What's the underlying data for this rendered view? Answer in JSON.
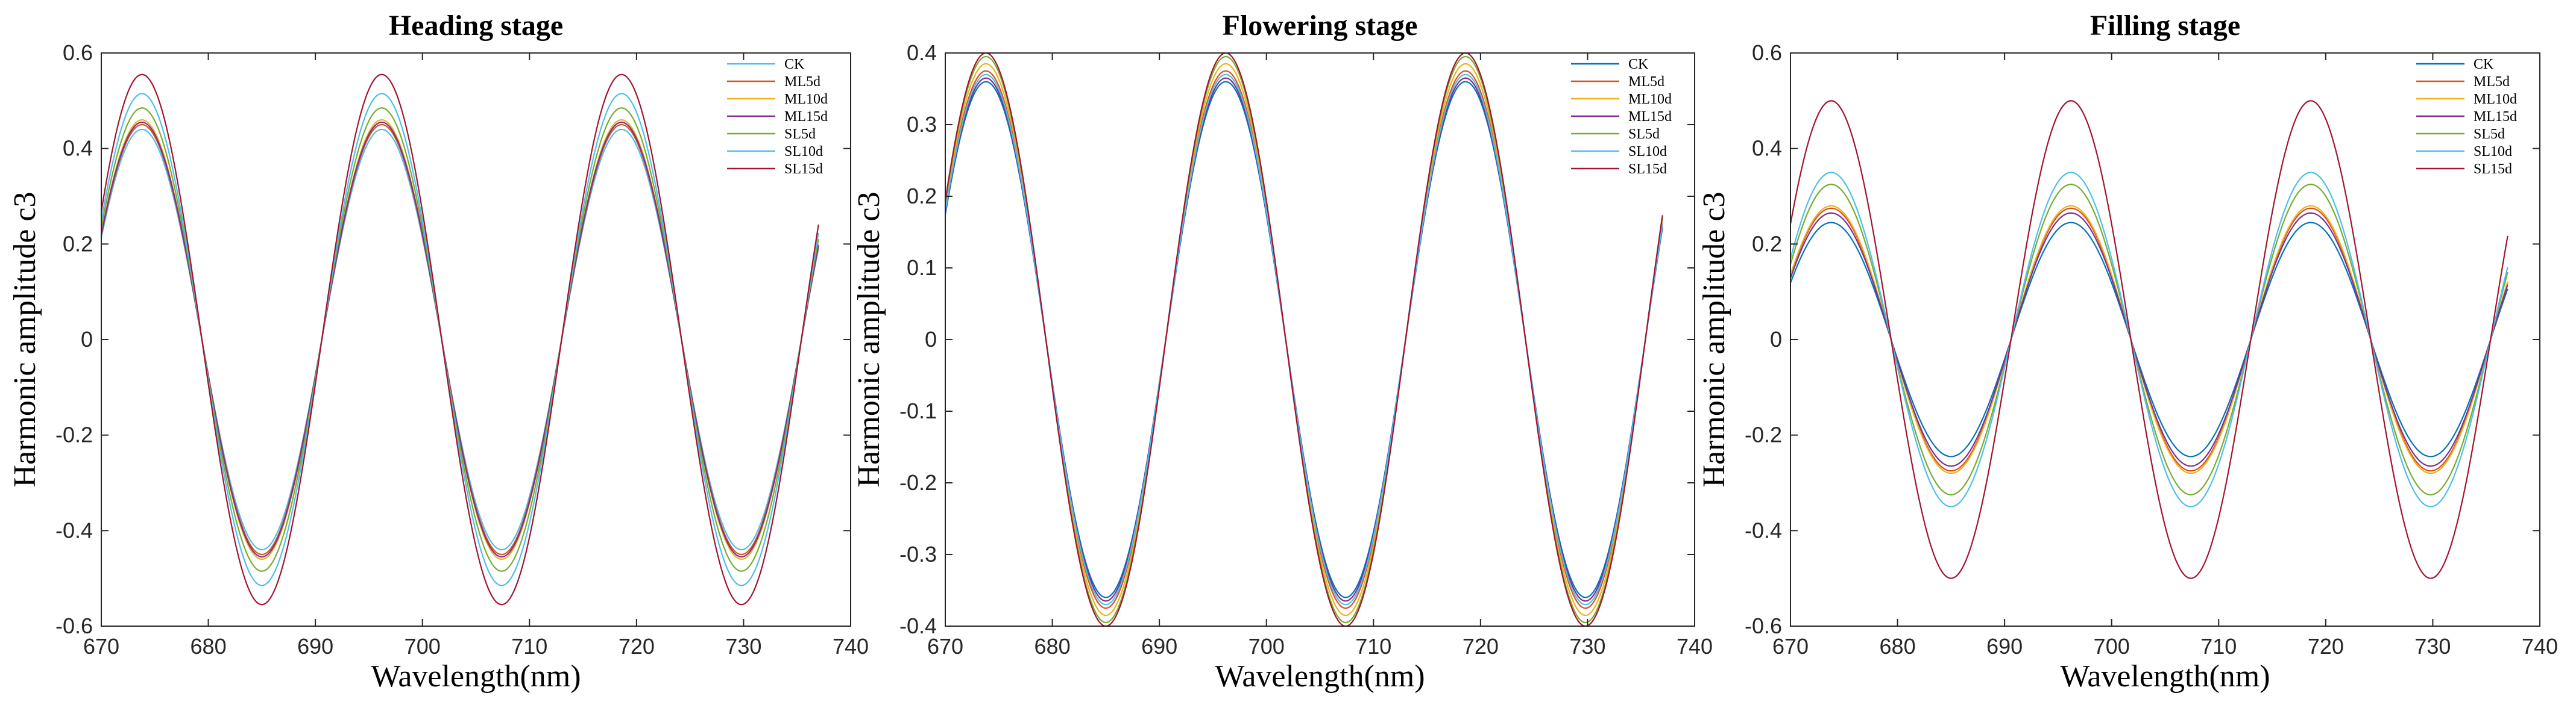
{
  "chart_data": [
    {
      "type": "line",
      "title": "Heading stage",
      "xlabel": "Wavelength(nm)",
      "ylabel": "Harmonic amplitude c3",
      "xlim": [
        670,
        740
      ],
      "ylim": [
        -0.6,
        0.6
      ],
      "xticks": [
        670,
        680,
        690,
        700,
        710,
        720,
        730,
        740
      ],
      "yticks": [
        -0.6,
        -0.4,
        -0.2,
        0,
        0.2,
        0.4,
        0.6
      ],
      "xtick_labels": [
        "670",
        "680",
        "690",
        "700",
        "710",
        "720",
        "730",
        "740"
      ],
      "ytick_labels": [
        "-0.6",
        "-0.4",
        "-0.2",
        "0",
        "0.2",
        "0.4",
        "0.6"
      ],
      "legend": "top-right",
      "x_range": [
        670,
        737
      ],
      "period_nm": 22.4,
      "peak_wavelength_nm": 673.8,
      "series": [
        {
          "name": "CK",
          "amplitude": 0.44,
          "color": "#4dbeee"
        },
        {
          "name": "ML5d",
          "amplitude": 0.45,
          "color": "#d95319"
        },
        {
          "name": "ML10d",
          "amplitude": 0.46,
          "color": "#edb120"
        },
        {
          "name": "ML15d",
          "amplitude": 0.455,
          "color": "#7e2f8e"
        },
        {
          "name": "SL5d",
          "amplitude": 0.485,
          "color": "#77ac30"
        },
        {
          "name": "SL10d",
          "amplitude": 0.515,
          "color": "#4dbeee"
        },
        {
          "name": "SL15d",
          "amplitude": 0.555,
          "color": "#a2142f"
        }
      ]
    },
    {
      "type": "line",
      "title": "Flowering stage",
      "xlabel": "Wavelength(nm)",
      "ylabel": "Harmonic amplitude c3",
      "xlim": [
        670,
        740
      ],
      "ylim": [
        -0.4,
        0.4
      ],
      "xticks": [
        670,
        680,
        690,
        700,
        710,
        720,
        730,
        740
      ],
      "yticks": [
        -0.4,
        -0.3,
        -0.2,
        -0.1,
        0,
        0.1,
        0.2,
        0.3,
        0.4
      ],
      "xtick_labels": [
        "670",
        "680",
        "690",
        "700",
        "710",
        "720",
        "730",
        "740"
      ],
      "ytick_labels": [
        "-0.4",
        "-0.3",
        "-0.2",
        "-0.1",
        "0",
        "0.1",
        "0.2",
        "0.3",
        "0.4"
      ],
      "legend": "top-right",
      "x_range": [
        670,
        737
      ],
      "period_nm": 22.4,
      "peak_wavelength_nm": 673.8,
      "series": [
        {
          "name": "CK",
          "amplitude": 0.36,
          "color": "#0072bd"
        },
        {
          "name": "ML5d",
          "amplitude": 0.375,
          "color": "#d95319"
        },
        {
          "name": "ML10d",
          "amplitude": 0.385,
          "color": "#edb120"
        },
        {
          "name": "ML15d",
          "amplitude": 0.365,
          "color": "#7e2f8e"
        },
        {
          "name": "SL5d",
          "amplitude": 0.395,
          "color": "#77ac30"
        },
        {
          "name": "SL10d",
          "amplitude": 0.37,
          "color": "#4dbeee"
        },
        {
          "name": "SL15d",
          "amplitude": 0.4,
          "color": "#a2142f"
        }
      ]
    },
    {
      "type": "line",
      "title": "Filling stage",
      "xlabel": "Wavelength(nm)",
      "ylabel": "Harmonic amplitude c3",
      "xlim": [
        670,
        740
      ],
      "ylim": [
        -0.6,
        0.6
      ],
      "xticks": [
        670,
        680,
        690,
        700,
        710,
        720,
        730,
        740
      ],
      "yticks": [
        -0.6,
        -0.4,
        -0.2,
        0,
        0.2,
        0.4,
        0.6
      ],
      "xtick_labels": [
        "670",
        "680",
        "690",
        "700",
        "710",
        "720",
        "730",
        "740"
      ],
      "ytick_labels": [
        "-0.6",
        "-0.4",
        "-0.2",
        "0",
        "0.2",
        "0.4",
        "0.6"
      ],
      "legend": "top-right",
      "x_range": [
        670,
        737
      ],
      "period_nm": 22.4,
      "peak_wavelength_nm": 673.8,
      "series": [
        {
          "name": "CK",
          "amplitude": 0.245,
          "color": "#0072bd"
        },
        {
          "name": "ML5d",
          "amplitude": 0.275,
          "color": "#d95319"
        },
        {
          "name": "ML10d",
          "amplitude": 0.28,
          "color": "#edb120"
        },
        {
          "name": "ML15d",
          "amplitude": 0.265,
          "color": "#7e2f8e"
        },
        {
          "name": "SL5d",
          "amplitude": 0.325,
          "color": "#77ac30"
        },
        {
          "name": "SL10d",
          "amplitude": 0.35,
          "color": "#4dbeee"
        },
        {
          "name": "SL15d",
          "amplitude": 0.5,
          "color": "#a2142f"
        }
      ]
    }
  ]
}
